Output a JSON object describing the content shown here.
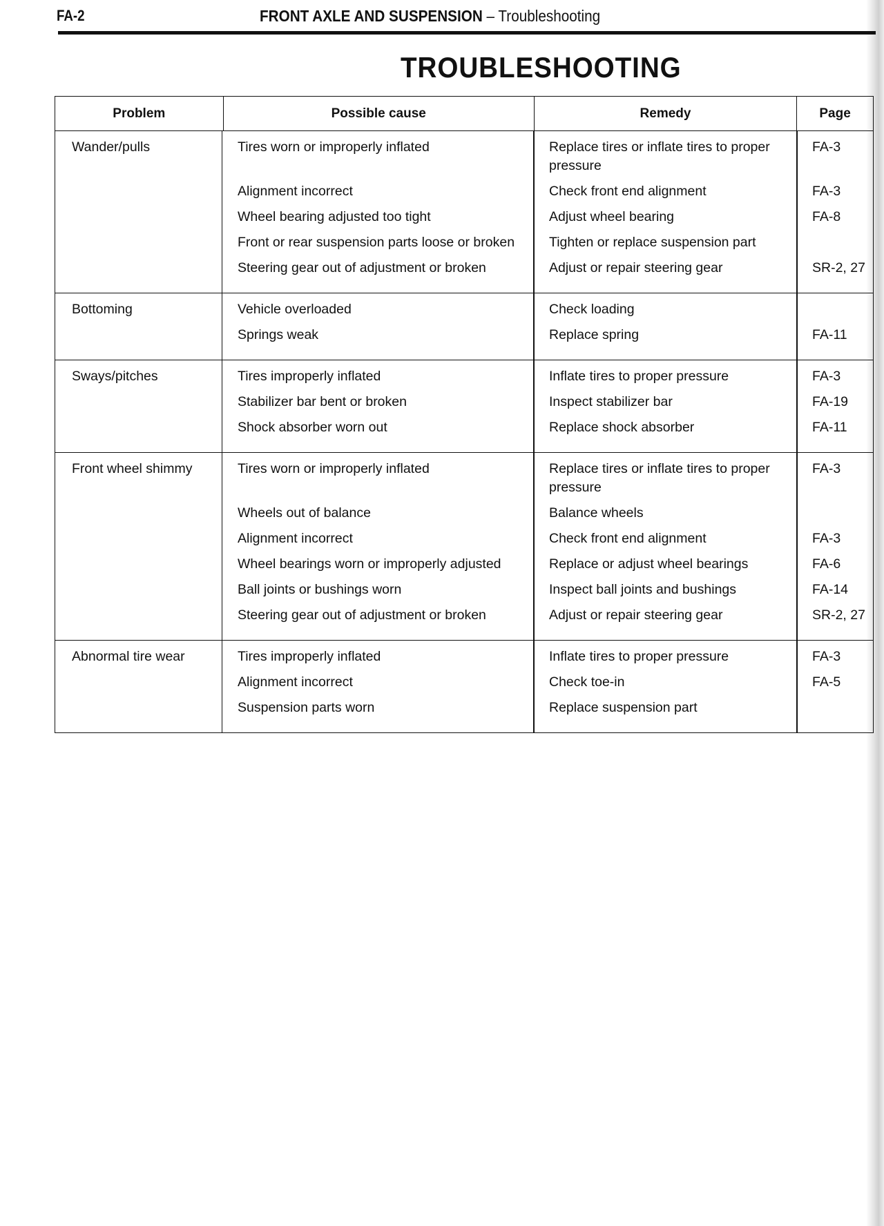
{
  "header": {
    "page_number": "FA-2",
    "section": "FRONT AXLE AND SUSPENSION",
    "subsection": "Troubleshooting"
  },
  "title": "TROUBLESHOOTING",
  "table": {
    "columns": [
      "Problem",
      "Possible cause",
      "Remedy",
      "Page"
    ],
    "groups": [
      {
        "problem": "Wander/pulls",
        "items": [
          {
            "cause": "Tires worn or improperly inflated",
            "remedy": "Replace tires or inflate tires to proper pressure",
            "page": "FA-3"
          },
          {
            "cause": "Alignment incorrect",
            "remedy": "Check front end alignment",
            "page": "FA-3"
          },
          {
            "cause": "Wheel bearing adjusted too tight",
            "remedy": "Adjust wheel bearing",
            "page": "FA-8"
          },
          {
            "cause": "Front or rear suspension parts loose or broken",
            "remedy": "Tighten or replace suspension part",
            "page": ""
          },
          {
            "cause": "Steering gear out of adjustment or broken",
            "remedy": "Adjust or repair steering gear",
            "page": "SR-2, 27"
          }
        ]
      },
      {
        "problem": "Bottoming",
        "items": [
          {
            "cause": "Vehicle overloaded",
            "remedy": "Check loading",
            "page": ""
          },
          {
            "cause": "Springs weak",
            "remedy": "Replace spring",
            "page": "FA-11"
          }
        ]
      },
      {
        "problem": "Sways/pitches",
        "items": [
          {
            "cause": "Tires improperly inflated",
            "remedy": "Inflate tires to proper pressure",
            "page": "FA-3"
          },
          {
            "cause": "Stabilizer bar bent or broken",
            "remedy": "Inspect stabilizer bar",
            "page": "FA-19"
          },
          {
            "cause": "Shock absorber worn out",
            "remedy": "Replace shock absorber",
            "page": "FA-11"
          }
        ]
      },
      {
        "problem": "Front wheel shimmy",
        "items": [
          {
            "cause": "Tires worn or improperly inflated",
            "remedy": "Replace tires or inflate tires to proper pressure",
            "page": "FA-3"
          },
          {
            "cause": "Wheels out of balance",
            "remedy": "Balance wheels",
            "page": ""
          },
          {
            "cause": "Alignment incorrect",
            "remedy": "Check front end alignment",
            "page": "FA-3"
          },
          {
            "cause": "Wheel bearings worn or improperly adjusted",
            "remedy": "Replace or adjust wheel bearings",
            "page": "FA-6"
          },
          {
            "cause": "Ball joints or bushings worn",
            "remedy": "Inspect ball joints and bushings",
            "page": "FA-14"
          },
          {
            "cause": "Steering gear out of adjustment or broken",
            "remedy": "Adjust or repair steering gear",
            "page": "SR-2, 27"
          }
        ]
      },
      {
        "problem": "Abnormal tire wear",
        "items": [
          {
            "cause": "Tires improperly inflated",
            "remedy": "Inflate tires to proper pressure",
            "page": "FA-3"
          },
          {
            "cause": "Alignment incorrect",
            "remedy": "Check toe-in",
            "page": "FA-5"
          },
          {
            "cause": "Suspension parts worn",
            "remedy": "Replace suspension part",
            "page": ""
          }
        ]
      }
    ]
  }
}
